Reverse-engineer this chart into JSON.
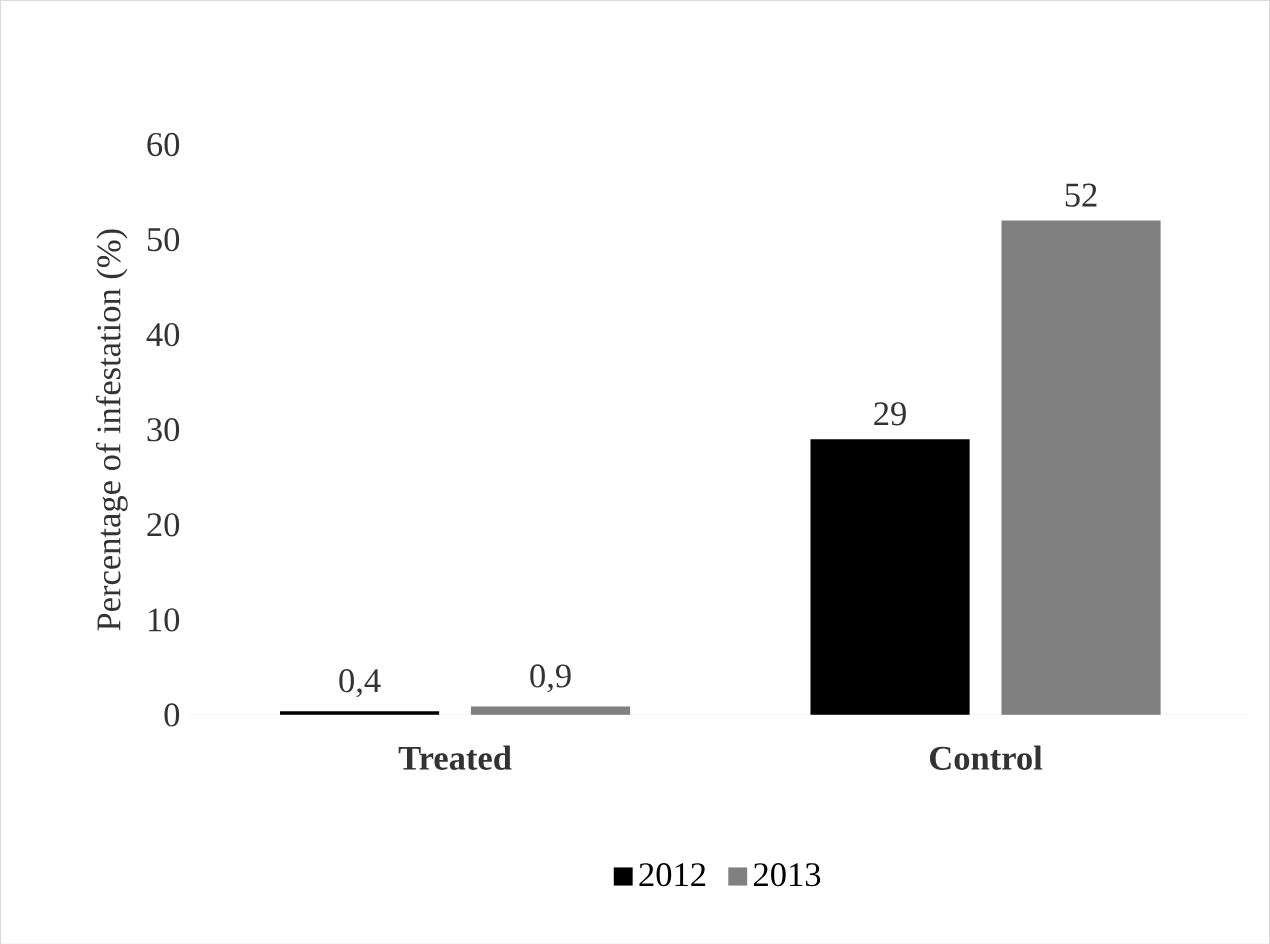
{
  "chart_data": {
    "type": "bar",
    "ylabel": "Percentage of infestation (%)",
    "categories": [
      "Treated",
      "Control"
    ],
    "series": [
      {
        "name": "2012",
        "color": "#000000",
        "values": [
          0.4,
          29
        ],
        "value_labels": [
          "0,4",
          "29"
        ]
      },
      {
        "name": "2013",
        "color": "#808080",
        "values": [
          0.9,
          52
        ],
        "value_labels": [
          "0,9",
          "52"
        ]
      }
    ],
    "ylim": [
      0,
      60
    ],
    "yticks": [
      0,
      10,
      20,
      30,
      40,
      50,
      60
    ],
    "grid": false,
    "legend": "bottom"
  }
}
